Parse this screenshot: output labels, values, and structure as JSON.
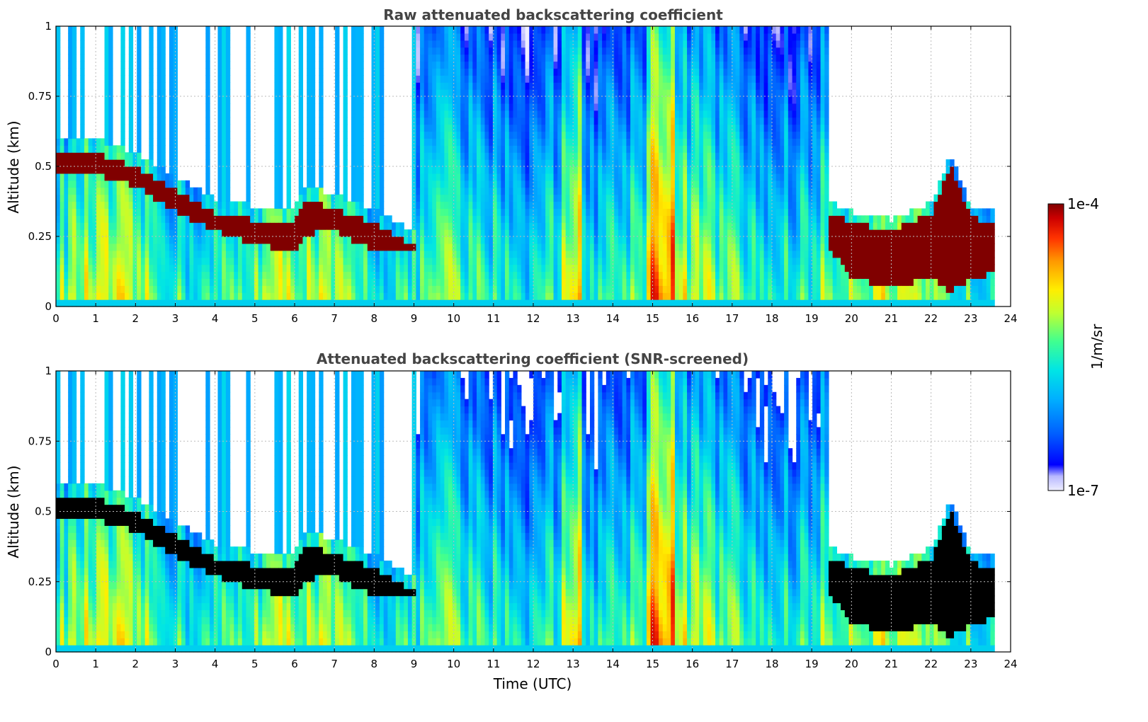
{
  "chart_data": [
    {
      "type": "heatmap",
      "title": "Raw attenuated backscattering coefficient",
      "xlabel": "",
      "ylabel": "Altitude (km)",
      "xlim": [
        0,
        24
      ],
      "ylim": [
        0,
        1
      ],
      "xticks": [
        "0",
        "1",
        "2",
        "3",
        "4",
        "5",
        "6",
        "7",
        "8",
        "9",
        "10",
        "11",
        "12",
        "13",
        "14",
        "15",
        "16",
        "17",
        "18",
        "19",
        "20",
        "21",
        "22",
        "23",
        "24"
      ],
      "yticks": [
        "0",
        "0.25",
        "0.5",
        "0.75",
        "1"
      ],
      "grid": true,
      "data_end_hour": 23.6,
      "screened": false,
      "layer_top_km": [
        [
          0,
          0.55
        ],
        [
          1,
          0.55
        ],
        [
          2,
          0.5
        ],
        [
          3,
          0.42
        ],
        [
          4,
          0.33
        ],
        [
          5,
          0.31
        ],
        [
          6,
          0.31
        ],
        [
          6.3,
          0.38
        ],
        [
          7,
          0.35
        ],
        [
          8,
          0.3
        ],
        [
          9,
          0.22
        ]
      ],
      "layer_bottom_km": [
        [
          0,
          0.47
        ],
        [
          1,
          0.47
        ],
        [
          2,
          0.43
        ],
        [
          3,
          0.34
        ],
        [
          4,
          0.27
        ],
        [
          5,
          0.22
        ],
        [
          6,
          0.2
        ],
        [
          6.3,
          0.26
        ],
        [
          7,
          0.27
        ],
        [
          8,
          0.2
        ],
        [
          9,
          0.19
        ]
      ],
      "late_layer_top_km": [
        [
          19.5,
          0.33
        ],
        [
          20,
          0.3
        ],
        [
          21,
          0.27
        ],
        [
          22,
          0.33
        ],
        [
          22.5,
          0.5
        ],
        [
          23,
          0.32
        ],
        [
          23.6,
          0.3
        ]
      ],
      "late_layer_bottom_km": [
        [
          19.5,
          0.2
        ],
        [
          20,
          0.1
        ],
        [
          21,
          0.07
        ],
        [
          22,
          0.1
        ],
        [
          22.5,
          0.05
        ],
        [
          23,
          0.1
        ],
        [
          23.6,
          0.12
        ]
      ]
    },
    {
      "type": "heatmap",
      "title": "Attenuated backscattering coefficient (SNR-screened)",
      "xlabel": "Time (UTC)",
      "ylabel": "Altitude (km)",
      "xlim": [
        0,
        24
      ],
      "ylim": [
        0,
        1
      ],
      "xticks": [
        "0",
        "1",
        "2",
        "3",
        "4",
        "5",
        "6",
        "7",
        "8",
        "9",
        "10",
        "11",
        "12",
        "13",
        "14",
        "15",
        "16",
        "17",
        "18",
        "19",
        "20",
        "21",
        "22",
        "23",
        "24"
      ],
      "yticks": [
        "0",
        "0.25",
        "0.5",
        "0.75",
        "1"
      ],
      "grid": true,
      "data_end_hour": 23.6,
      "screened": true,
      "saturated_color": "#000000"
    }
  ],
  "colorbar": {
    "label": "1/m/sr",
    "max_label": "1e-4",
    "min_label": "1e-7",
    "colormap": [
      "#eeeeff",
      "#b8b8ff",
      "#0000ff",
      "#0060ff",
      "#00b0ff",
      "#00e5e5",
      "#40ff90",
      "#c0ff30",
      "#ffee00",
      "#ff9900",
      "#ff3300",
      "#cc0000",
      "#800000"
    ]
  }
}
